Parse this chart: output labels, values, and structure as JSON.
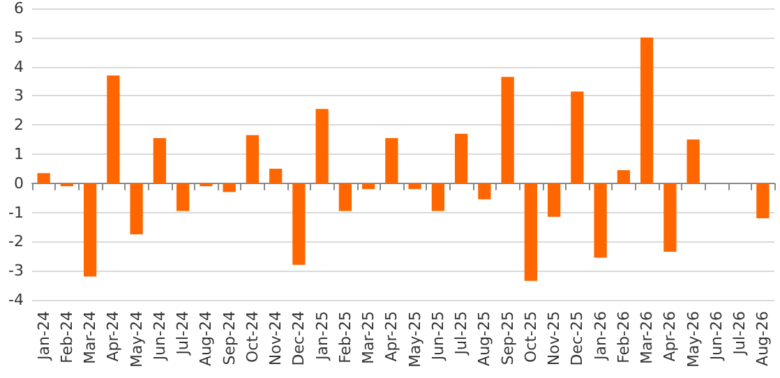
{
  "chart_data": {
    "type": "bar",
    "categories": [
      "Jan-24",
      "Feb-24",
      "Mar-24",
      "Apr-24",
      "May-24",
      "Jun-24",
      "Jul-24",
      "Aug-24",
      "Sep-24",
      "Oct-24",
      "Nov-24",
      "Dec-24",
      "Jan-25",
      "Feb-25",
      "Mar-25",
      "Apr-25",
      "May-25",
      "Jun-25",
      "Jul-25",
      "Aug-25",
      "Sep-25",
      "Oct-25",
      "Nov-25",
      "Dec-25",
      "Jan-26",
      "Feb-26",
      "Mar-26",
      "Apr-26",
      "May-26",
      "Jun-26",
      "Jul-26",
      "Aug-26"
    ],
    "values": [
      0.35,
      -0.1,
      -3.2,
      3.7,
      -1.75,
      1.55,
      -0.95,
      -0.1,
      -0.3,
      1.65,
      0.5,
      -2.8,
      2.55,
      -0.95,
      -0.2,
      1.55,
      -0.2,
      -0.95,
      1.7,
      -0.55,
      3.65,
      -3.35,
      -1.15,
      3.15,
      -2.55,
      0.45,
      5.0,
      -2.35,
      1.5,
      null,
      null,
      -1.2
    ],
    "color": "#ff6600",
    "ylim": [
      -4,
      6
    ],
    "yticks": [
      -4,
      -3,
      -2,
      -1,
      0,
      1,
      2,
      3,
      4,
      5,
      6
    ],
    "grid": "y"
  }
}
